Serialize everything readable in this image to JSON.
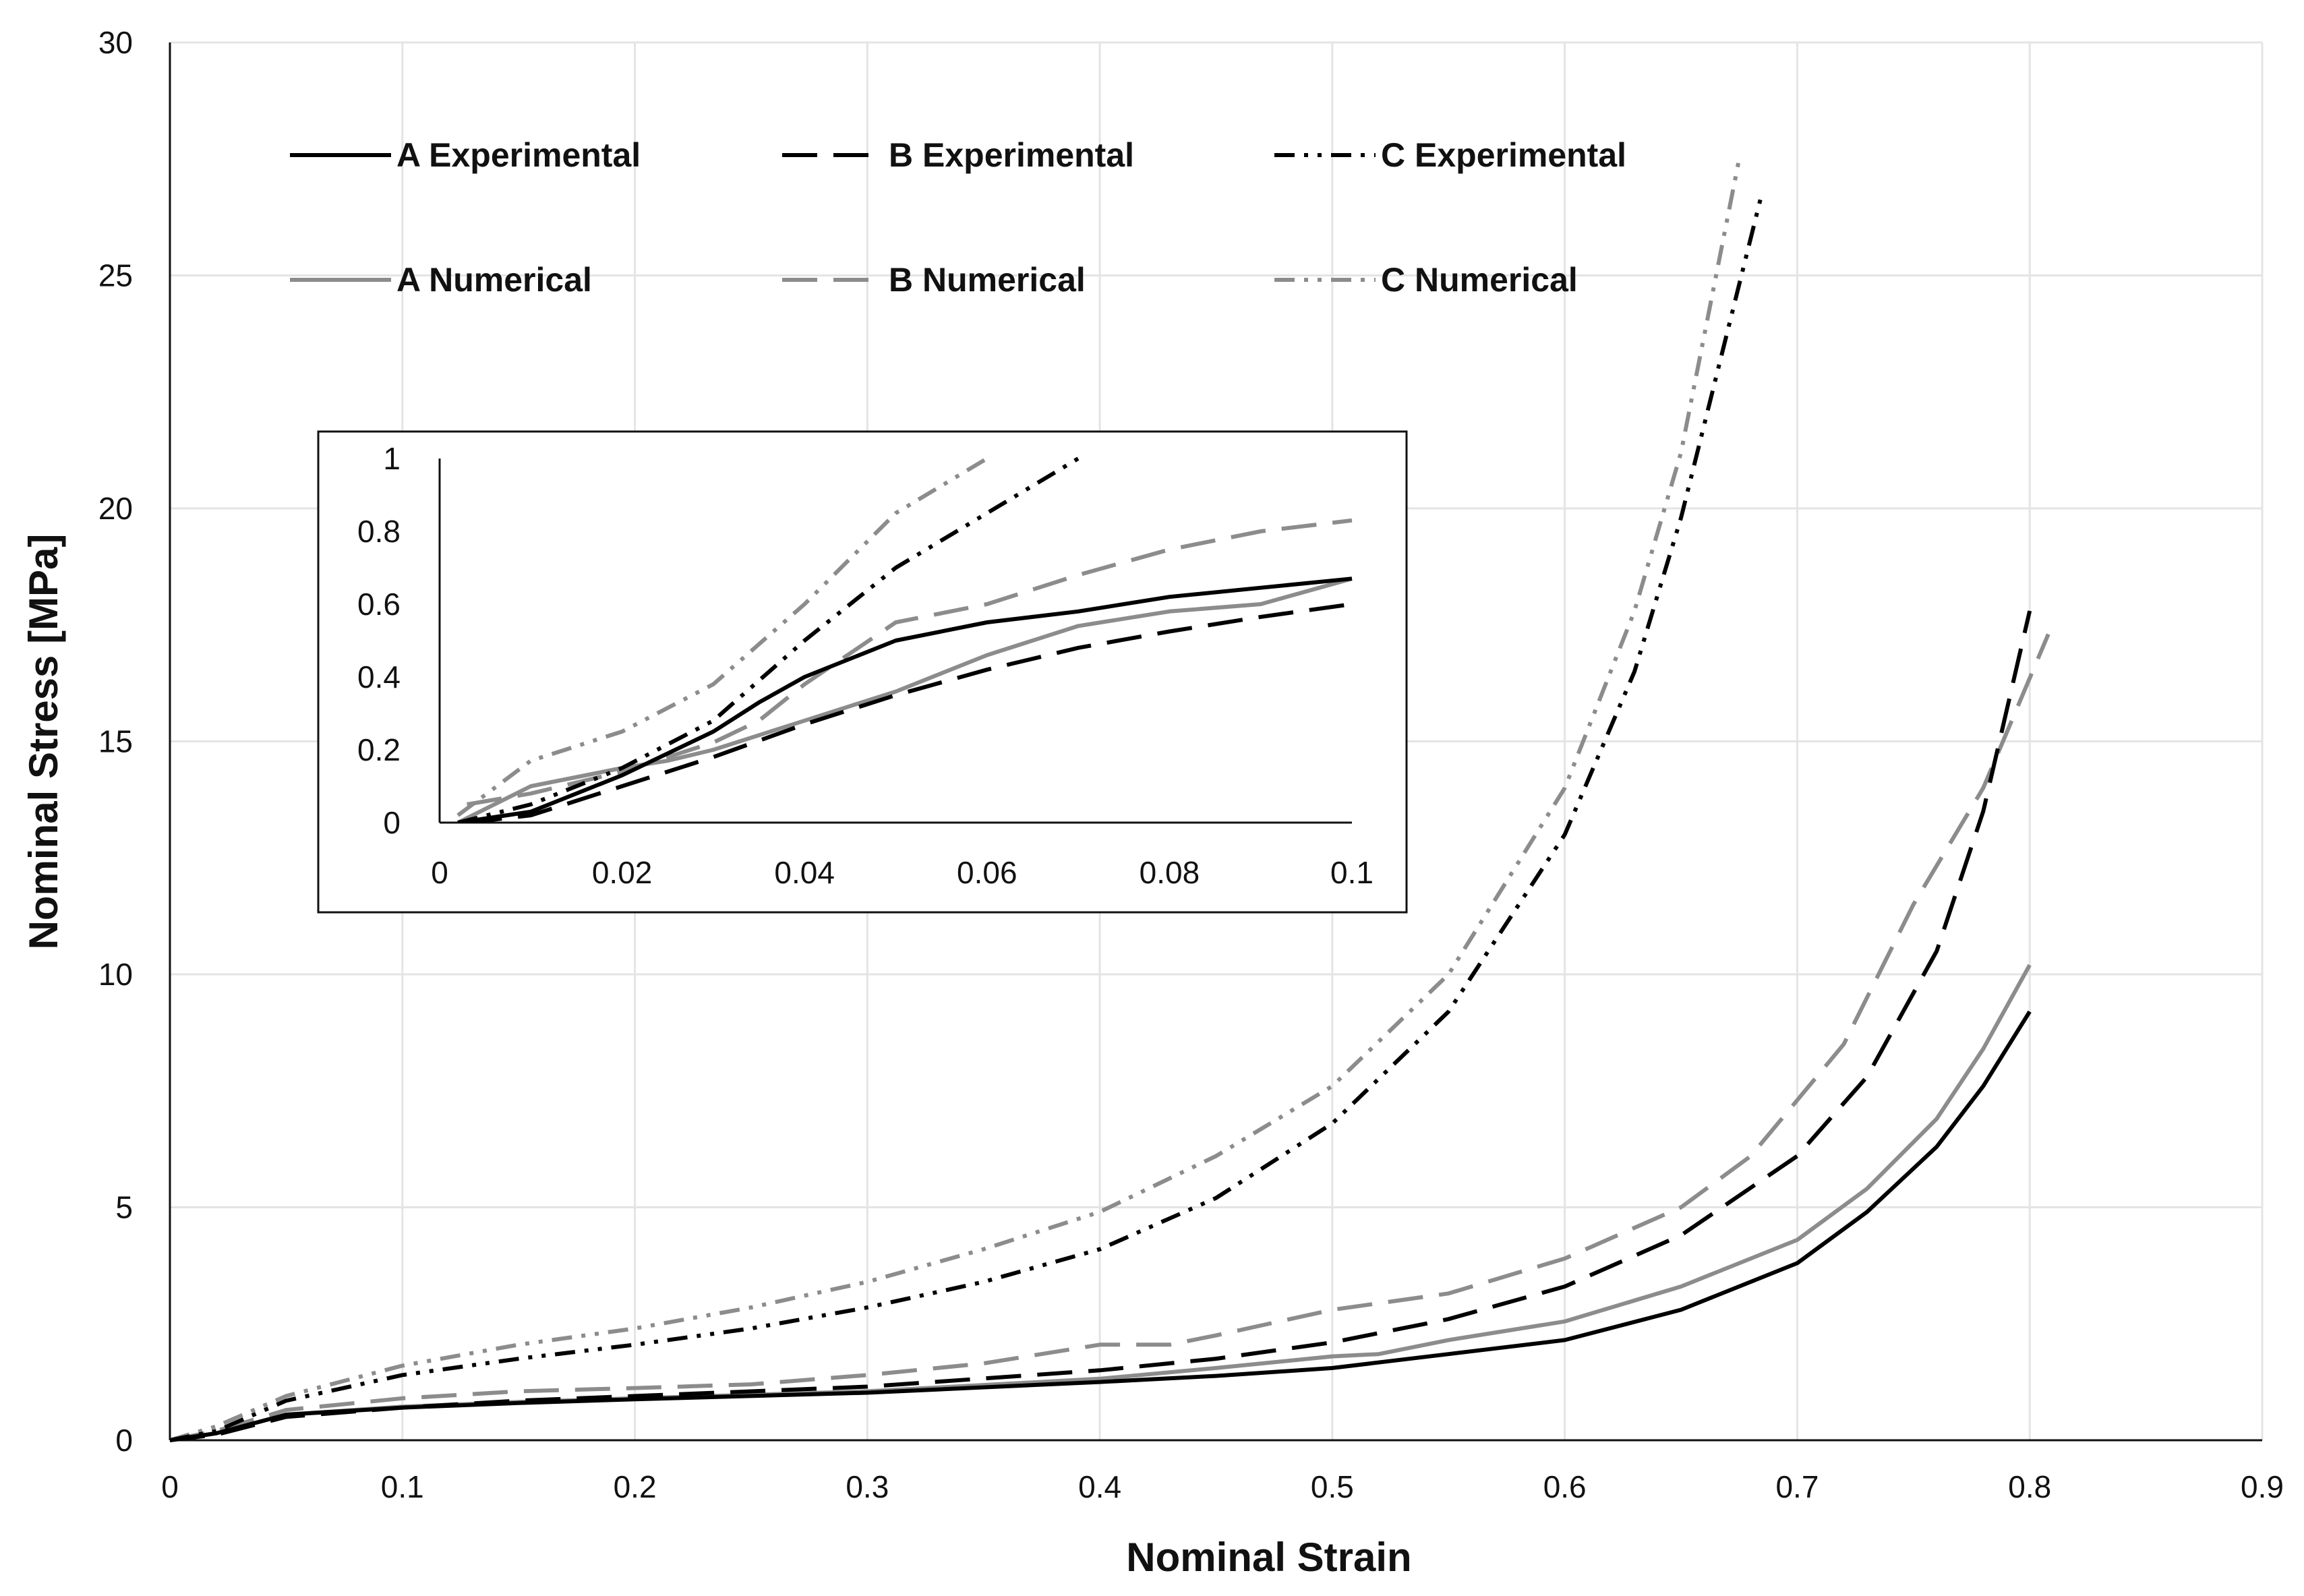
{
  "chart_data": {
    "type": "line",
    "xlabel": "Nominal Strain",
    "ylabel": "Nominal Stress [MPa]",
    "xlim": [
      0,
      0.9
    ],
    "ylim": [
      0,
      30
    ],
    "x_ticks": [
      "0",
      "0.1",
      "0.2",
      "0.3",
      "0.4",
      "0.5",
      "0.6",
      "0.7",
      "0.8",
      "0.9"
    ],
    "y_ticks": [
      "0",
      "5",
      "10",
      "15",
      "20",
      "25",
      "30"
    ],
    "grid": true,
    "legend_position": "top-left",
    "series": [
      {
        "name": "A Experimental",
        "color": "#000000",
        "dash": "solid",
        "points": [
          [
            0,
            0
          ],
          [
            0.02,
            0.15
          ],
          [
            0.05,
            0.55
          ],
          [
            0.1,
            0.7
          ],
          [
            0.15,
            0.8
          ],
          [
            0.2,
            0.88
          ],
          [
            0.3,
            1.02
          ],
          [
            0.4,
            1.25
          ],
          [
            0.45,
            1.38
          ],
          [
            0.5,
            1.55
          ],
          [
            0.55,
            1.85
          ],
          [
            0.6,
            2.15
          ],
          [
            0.65,
            2.8
          ],
          [
            0.7,
            3.8
          ],
          [
            0.73,
            4.9
          ],
          [
            0.76,
            6.3
          ],
          [
            0.78,
            7.6
          ],
          [
            0.8,
            9.2
          ]
        ]
      },
      {
        "name": "B Experimental",
        "color": "#000000",
        "dash": "long-dash",
        "points": [
          [
            0,
            0
          ],
          [
            0.02,
            0.12
          ],
          [
            0.05,
            0.5
          ],
          [
            0.1,
            0.7
          ],
          [
            0.15,
            0.85
          ],
          [
            0.2,
            0.95
          ],
          [
            0.3,
            1.15
          ],
          [
            0.4,
            1.5
          ],
          [
            0.45,
            1.75
          ],
          [
            0.5,
            2.1
          ],
          [
            0.55,
            2.6
          ],
          [
            0.6,
            3.3
          ],
          [
            0.65,
            4.4
          ],
          [
            0.7,
            6.1
          ],
          [
            0.73,
            7.8
          ],
          [
            0.76,
            10.5
          ],
          [
            0.78,
            13.5
          ],
          [
            0.8,
            17.8
          ]
        ]
      },
      {
        "name": "C Experimental",
        "color": "#000000",
        "dash": "dash-dot-dot",
        "points": [
          [
            0,
            0
          ],
          [
            0.02,
            0.2
          ],
          [
            0.05,
            0.85
          ],
          [
            0.1,
            1.4
          ],
          [
            0.15,
            1.75
          ],
          [
            0.2,
            2.05
          ],
          [
            0.25,
            2.4
          ],
          [
            0.3,
            2.85
          ],
          [
            0.35,
            3.4
          ],
          [
            0.4,
            4.1
          ],
          [
            0.45,
            5.2
          ],
          [
            0.5,
            6.8
          ],
          [
            0.55,
            9.2
          ],
          [
            0.6,
            13.0
          ],
          [
            0.63,
            16.5
          ],
          [
            0.65,
            19.8
          ],
          [
            0.67,
            23.8
          ],
          [
            0.685,
            26.8
          ]
        ]
      },
      {
        "name": "A Numerical",
        "color": "#8c8c8c",
        "dash": "solid",
        "points": [
          [
            0,
            0
          ],
          [
            0.02,
            0.15
          ],
          [
            0.05,
            0.55
          ],
          [
            0.1,
            0.72
          ],
          [
            0.15,
            0.82
          ],
          [
            0.2,
            0.9
          ],
          [
            0.3,
            1.05
          ],
          [
            0.4,
            1.32
          ],
          [
            0.45,
            1.55
          ],
          [
            0.5,
            1.8
          ],
          [
            0.52,
            1.85
          ],
          [
            0.55,
            2.15
          ],
          [
            0.6,
            2.55
          ],
          [
            0.65,
            3.3
          ],
          [
            0.7,
            4.3
          ],
          [
            0.73,
            5.4
          ],
          [
            0.76,
            6.9
          ],
          [
            0.78,
            8.4
          ],
          [
            0.8,
            10.2
          ]
        ]
      },
      {
        "name": "B Numerical",
        "color": "#8c8c8c",
        "dash": "long-dash",
        "points": [
          [
            0,
            0
          ],
          [
            0.02,
            0.2
          ],
          [
            0.05,
            0.65
          ],
          [
            0.1,
            0.9
          ],
          [
            0.15,
            1.05
          ],
          [
            0.2,
            1.12
          ],
          [
            0.25,
            1.2
          ],
          [
            0.3,
            1.4
          ],
          [
            0.35,
            1.65
          ],
          [
            0.4,
            2.05
          ],
          [
            0.43,
            2.05
          ],
          [
            0.45,
            2.25
          ],
          [
            0.5,
            2.8
          ],
          [
            0.55,
            3.15
          ],
          [
            0.6,
            3.9
          ],
          [
            0.65,
            5.0
          ],
          [
            0.68,
            6.1
          ],
          [
            0.72,
            8.5
          ],
          [
            0.75,
            11.5
          ],
          [
            0.78,
            14.0
          ],
          [
            0.808,
            17.3
          ]
        ]
      },
      {
        "name": "C Numerical",
        "color": "#8c8c8c",
        "dash": "dash-dot-dot",
        "points": [
          [
            0,
            0
          ],
          [
            0.02,
            0.3
          ],
          [
            0.05,
            0.95
          ],
          [
            0.1,
            1.6
          ],
          [
            0.15,
            2.05
          ],
          [
            0.2,
            2.4
          ],
          [
            0.25,
            2.85
          ],
          [
            0.3,
            3.4
          ],
          [
            0.35,
            4.1
          ],
          [
            0.4,
            4.9
          ],
          [
            0.45,
            6.1
          ],
          [
            0.5,
            7.6
          ],
          [
            0.55,
            10.0
          ],
          [
            0.6,
            14.0
          ],
          [
            0.63,
            17.8
          ],
          [
            0.65,
            21.2
          ],
          [
            0.675,
            27.5
          ]
        ]
      }
    ],
    "inset": {
      "xlim": [
        0,
        0.1
      ],
      "ylim": [
        0,
        1
      ],
      "x_ticks": [
        "0",
        "0.02",
        "0.04",
        "0.06",
        "0.08",
        "0.1"
      ],
      "y_ticks": [
        "0",
        "0.2",
        "0.4",
        "0.6",
        "0.8",
        "1"
      ],
      "grid": false,
      "series": [
        {
          "name": "A Experimental",
          "color": "#000000",
          "dash": "solid",
          "points": [
            [
              0.002,
              0
            ],
            [
              0.01,
              0.03
            ],
            [
              0.02,
              0.13
            ],
            [
              0.03,
              0.25
            ],
            [
              0.035,
              0.33
            ],
            [
              0.04,
              0.4
            ],
            [
              0.05,
              0.5
            ],
            [
              0.06,
              0.55
            ],
            [
              0.07,
              0.58
            ],
            [
              0.08,
              0.62
            ],
            [
              0.09,
              0.645
            ],
            [
              0.1,
              0.67
            ]
          ]
        },
        {
          "name": "B Experimental",
          "color": "#000000",
          "dash": "long-dash",
          "points": [
            [
              0.003,
              0
            ],
            [
              0.01,
              0.02
            ],
            [
              0.02,
              0.1
            ],
            [
              0.03,
              0.18
            ],
            [
              0.04,
              0.27
            ],
            [
              0.05,
              0.35
            ],
            [
              0.06,
              0.42
            ],
            [
              0.07,
              0.48
            ],
            [
              0.08,
              0.525
            ],
            [
              0.09,
              0.565
            ],
            [
              0.1,
              0.6
            ]
          ]
        },
        {
          "name": "C Experimental",
          "color": "#000000",
          "dash": "dash-dot-dot",
          "points": [
            [
              0.002,
              0
            ],
            [
              0.01,
              0.05
            ],
            [
              0.02,
              0.15
            ],
            [
              0.03,
              0.28
            ],
            [
              0.04,
              0.5
            ],
            [
              0.05,
              0.7
            ],
            [
              0.06,
              0.85
            ],
            [
              0.07,
              1.0
            ]
          ]
        },
        {
          "name": "A Numerical",
          "color": "#8c8c8c",
          "dash": "solid",
          "points": [
            [
              0.002,
              0
            ],
            [
              0.01,
              0.1
            ],
            [
              0.02,
              0.15
            ],
            [
              0.025,
              0.17
            ],
            [
              0.03,
              0.2
            ],
            [
              0.04,
              0.28
            ],
            [
              0.05,
              0.36
            ],
            [
              0.06,
              0.46
            ],
            [
              0.07,
              0.54
            ],
            [
              0.08,
              0.58
            ],
            [
              0.09,
              0.6
            ],
            [
              0.1,
              0.67
            ]
          ]
        },
        {
          "name": "B Numerical",
          "color": "#8c8c8c",
          "dash": "long-dash",
          "points": [
            [
              0.003,
              0.05
            ],
            [
              0.01,
              0.08
            ],
            [
              0.02,
              0.14
            ],
            [
              0.03,
              0.22
            ],
            [
              0.035,
              0.28
            ],
            [
              0.04,
              0.38
            ],
            [
              0.05,
              0.55
            ],
            [
              0.06,
              0.6
            ],
            [
              0.07,
              0.68
            ],
            [
              0.08,
              0.75
            ],
            [
              0.09,
              0.8
            ],
            [
              0.1,
              0.83
            ]
          ]
        },
        {
          "name": "C Numerical",
          "color": "#8c8c8c",
          "dash": "dash-dot-dot",
          "points": [
            [
              0.002,
              0.02
            ],
            [
              0.01,
              0.17
            ],
            [
              0.02,
              0.25
            ],
            [
              0.03,
              0.38
            ],
            [
              0.04,
              0.6
            ],
            [
              0.05,
              0.85
            ],
            [
              0.06,
              1.0
            ]
          ]
        }
      ]
    }
  }
}
